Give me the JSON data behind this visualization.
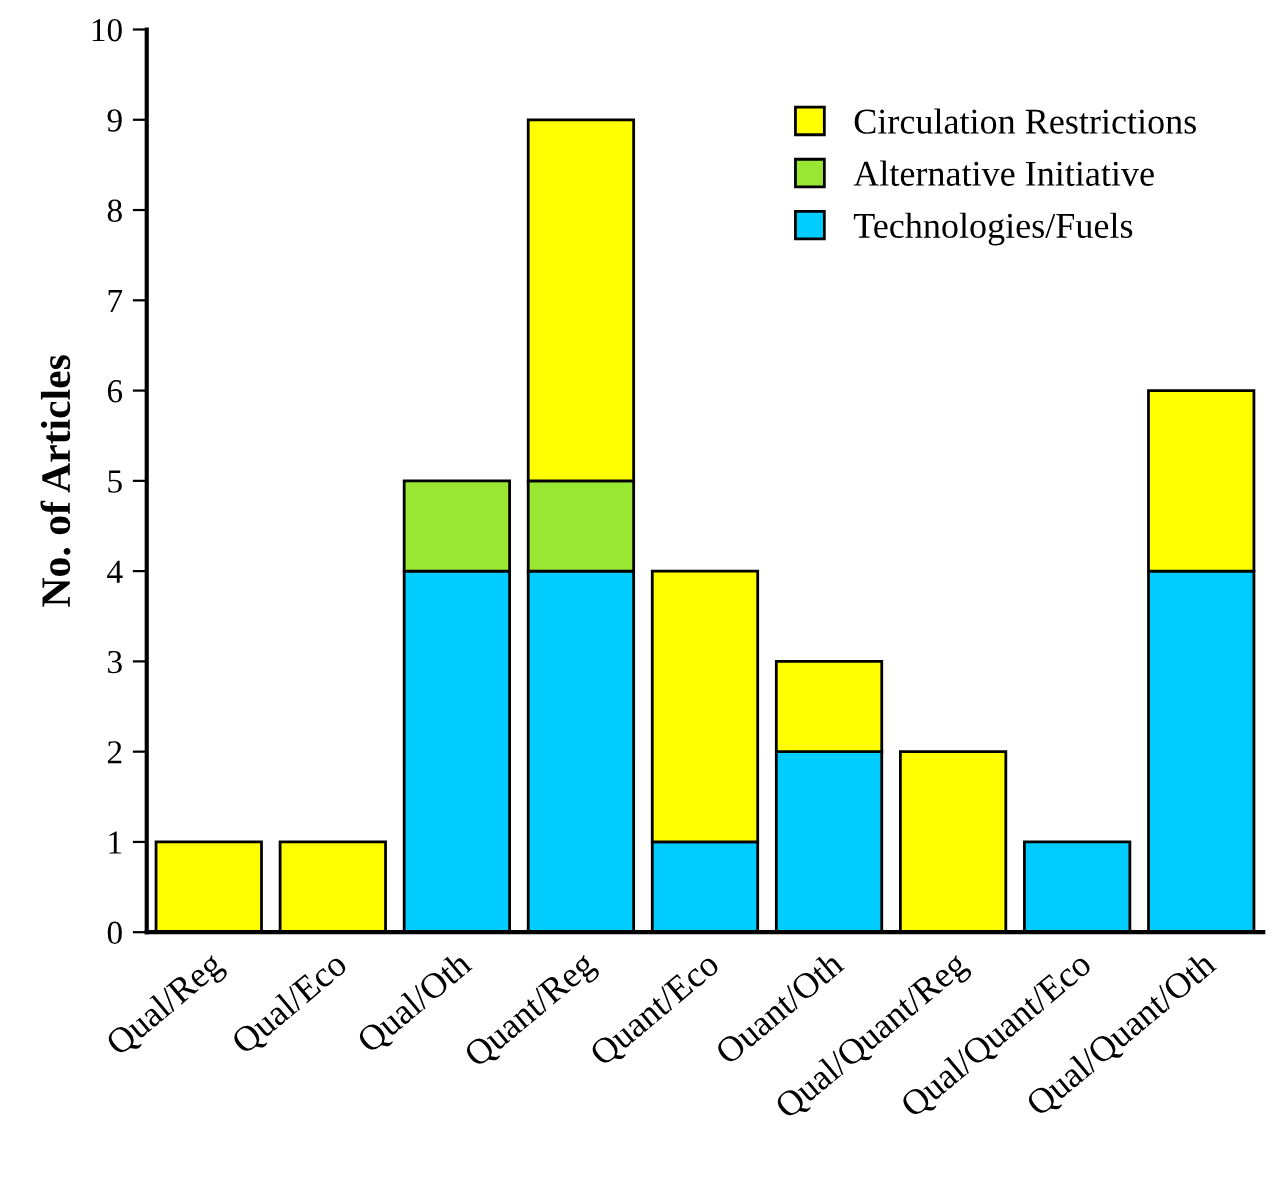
{
  "chart_data": {
    "type": "bar",
    "stacked": true,
    "ylabel": "No. of Articles",
    "categories": [
      "Qual/Reg",
      "Qual/Eco",
      "Qual/Oth",
      "Quant/Reg",
      "Quant/Eco",
      "Ouant/Oth",
      "Qual/Quant/Reg",
      "Qual/Quant/Eco",
      "Qual/Quant/Oth"
    ],
    "series": [
      {
        "name": "Technologies/Fuels",
        "color": "#00ccff",
        "values": [
          0,
          0,
          4,
          4,
          1,
          2,
          0,
          1,
          4
        ]
      },
      {
        "name": "Alternative Initiative",
        "color": "#99e633",
        "values": [
          0,
          0,
          1,
          1,
          0,
          0,
          0,
          0,
          0
        ]
      },
      {
        "name": "Circulation Restrictions",
        "color": "#ffff00",
        "values": [
          1,
          1,
          0,
          4,
          3,
          1,
          2,
          0,
          2
        ]
      }
    ],
    "ylim": [
      0,
      10
    ],
    "yticks": [
      0,
      1,
      2,
      3,
      4,
      5,
      6,
      7,
      8,
      9,
      10
    ],
    "grid": false,
    "legend": "top right"
  }
}
